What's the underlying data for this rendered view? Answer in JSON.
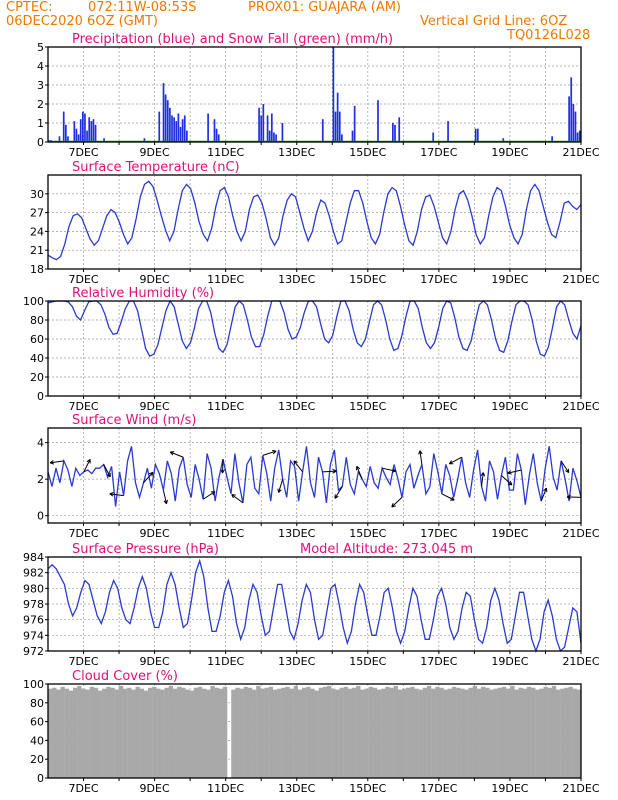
{
  "header": {
    "source": "CPTEC:",
    "coords": "072:11W-08:53S",
    "location": "PROX01: GUAJARA (AM)",
    "run": "06DEC2020 6OZ (GMT)",
    "grid_note": "Vertical Grid Line: 6OZ",
    "code": "TQ0126L028"
  },
  "date_labels": [
    "7DEC",
    "9DEC",
    "11DEC",
    "13DEC",
    "15DEC",
    "17DEC",
    "19DEC",
    "21DEC"
  ],
  "colors": {
    "header": "#f07800",
    "title": "#e0107a",
    "line": "#2a3ad0",
    "bar": "#1f2fe0",
    "snow": "#1a9a1a",
    "cloud": "#a8a8a8"
  },
  "chart_data": [
    {
      "type": "bar",
      "title": "Precipitation (blue) and Snow Fall (green) (mm/h)",
      "ylim": [
        0,
        5
      ],
      "yticks": [
        "0",
        "1",
        "2",
        "3",
        "4",
        "5"
      ],
      "series": [
        {
          "name": "Precipitation",
          "values": [
            0.1,
            0.1,
            0,
            0,
            0,
            0.3,
            0,
            1.6,
            0.9,
            0.3,
            0,
            0,
            1.1,
            0.7,
            0.4,
            1.2,
            1.6,
            1.5,
            0.6,
            1.3,
            1.1,
            1.2,
            0.9,
            0,
            0,
            0,
            0.2,
            0,
            0,
            0,
            0,
            0,
            0,
            0,
            0,
            0,
            0,
            0,
            0,
            0,
            0,
            0,
            0,
            0,
            0,
            0.2,
            0,
            0,
            0,
            0,
            0,
            0,
            1.6,
            0,
            3.1,
            2.5,
            2.2,
            1.8,
            1.4,
            1.3,
            1.1,
            1.5,
            0.8,
            1.2,
            1.4,
            0.6,
            0,
            0,
            0,
            0,
            0,
            0,
            0,
            0,
            0,
            1.5,
            0,
            0,
            1.2,
            0.7,
            0.4,
            0,
            0,
            0,
            0,
            0,
            0,
            0,
            0,
            0,
            0,
            0,
            0,
            0,
            0,
            0,
            0,
            0,
            0,
            1.8,
            1.4,
            2.0,
            0,
            1.4,
            0.6,
            1.5,
            0.5,
            0.4,
            0,
            0,
            1.0,
            0,
            0,
            0,
            0,
            0,
            0,
            0,
            0,
            0,
            0,
            0,
            0,
            0,
            0,
            0,
            0,
            0,
            0,
            1.2,
            0,
            0,
            0,
            0,
            5.0,
            1.6,
            2.6,
            1.6,
            0.4,
            0,
            0,
            0,
            0,
            0.6,
            1.9,
            0,
            0,
            0,
            0,
            0,
            0,
            0,
            0,
            0,
            0,
            2.2,
            0,
            0,
            0,
            0,
            0,
            0,
            1.0,
            0.9,
            0,
            1.3,
            0,
            0,
            0,
            0,
            0,
            0,
            0,
            0,
            0,
            0,
            0,
            0,
            0,
            0,
            0,
            0.5,
            0,
            0,
            0,
            0,
            0,
            0,
            1.1,
            0,
            0,
            0,
            0,
            0,
            0,
            0,
            0,
            0,
            0,
            0,
            0,
            0.7,
            0.7,
            0,
            0,
            0,
            0,
            0,
            0,
            0,
            0,
            0,
            0,
            0,
            0.2,
            0,
            0,
            0,
            0,
            0,
            0,
            0,
            0,
            0,
            0,
            0,
            0,
            0,
            0,
            0,
            0,
            0,
            0,
            0,
            0,
            0,
            0,
            0.3,
            0,
            0,
            0,
            0,
            0,
            0,
            0,
            2.4,
            3.4,
            2.0,
            1.6,
            0.5,
            0.6
          ]
        },
        {
          "name": "Snow Fall",
          "values": [
            0
          ]
        }
      ]
    },
    {
      "type": "line",
      "title": "Surface Temperature (nC)",
      "ylim": [
        18,
        33
      ],
      "yticks": [
        "18",
        "21",
        "24",
        "27",
        "30"
      ],
      "x_start": "2020-12-06T06:00Z",
      "x_step_hours": 3,
      "values": [
        20.2,
        19.8,
        19.5,
        20.0,
        22.0,
        24.8,
        26.5,
        26.8,
        26.2,
        24.5,
        22.8,
        21.8,
        22.5,
        24.5,
        26.5,
        27.5,
        27.0,
        25.5,
        23.5,
        22.0,
        23.0,
        26.0,
        29.5,
        31.5,
        32.0,
        31.2,
        29.0,
        26.5,
        24.2,
        22.5,
        24.0,
        27.5,
        30.5,
        31.5,
        30.8,
        28.5,
        25.5,
        23.5,
        22.5,
        24.5,
        28.0,
        30.5,
        31.0,
        29.5,
        26.5,
        24.0,
        22.5,
        24.0,
        27.5,
        29.5,
        29.8,
        28.5,
        26.0,
        23.0,
        21.8,
        23.0,
        26.5,
        29.0,
        30.0,
        29.5,
        27.0,
        24.5,
        22.5,
        24.0,
        27.0,
        29.0,
        28.5,
        26.5,
        24.0,
        22.0,
        22.5,
        25.5,
        28.5,
        30.5,
        30.5,
        28.5,
        25.5,
        23.0,
        22.0,
        23.5,
        27.0,
        30.0,
        31.0,
        30.5,
        28.0,
        25.0,
        22.5,
        21.8,
        24.0,
        27.5,
        29.5,
        29.8,
        28.0,
        25.5,
        23.0,
        22.0,
        24.0,
        27.5,
        30.0,
        30.5,
        29.0,
        26.5,
        23.5,
        22.0,
        23.0,
        26.5,
        29.5,
        31.0,
        30.5,
        28.0,
        25.0,
        23.0,
        22.0,
        23.5,
        27.5,
        30.5,
        31.5,
        30.5,
        28.0,
        25.5,
        23.5,
        23.0,
        25.5,
        28.5,
        28.8,
        28.0,
        27.5,
        28.3
      ]
    },
    {
      "type": "line",
      "title": "Relative Humidity (%)",
      "ylim": [
        0,
        100
      ],
      "yticks": [
        "0",
        "20",
        "40",
        "60",
        "80",
        "100"
      ],
      "values": [
        98,
        99,
        100,
        100,
        100,
        99,
        94,
        84,
        80,
        90,
        99,
        100,
        100,
        96,
        86,
        72,
        65,
        66,
        78,
        92,
        100,
        100,
        90,
        70,
        50,
        42,
        44,
        54,
        72,
        90,
        100,
        94,
        76,
        58,
        50,
        56,
        72,
        92,
        100,
        100,
        88,
        66,
        50,
        46,
        54,
        74,
        94,
        100,
        96,
        80,
        62,
        52,
        52,
        64,
        84,
        100,
        100,
        100,
        88,
        70,
        60,
        62,
        72,
        88,
        100,
        100,
        94,
        76,
        60,
        56,
        64,
        84,
        100,
        100,
        90,
        70,
        56,
        52,
        60,
        78,
        96,
        100,
        96,
        80,
        60,
        48,
        50,
        64,
        84,
        100,
        100,
        92,
        72,
        56,
        50,
        56,
        72,
        92,
        100,
        98,
        82,
        62,
        50,
        48,
        58,
        78,
        96,
        100,
        96,
        80,
        60,
        48,
        46,
        58,
        78,
        96,
        100,
        100,
        96,
        80,
        58,
        44,
        42,
        52,
        72,
        94,
        100,
        96,
        80,
        66,
        60,
        74
      ]
    },
    {
      "type": "line",
      "title": "Surface Wind (m/s)",
      "ylim": [
        -0.4,
        4.8
      ],
      "yticks": [
        "0",
        "2",
        "4"
      ],
      "values": [
        2.4,
        1.6,
        2.6,
        1.8,
        3.0,
        2.5,
        1.6,
        2.6,
        2.2,
        2.4,
        2.5,
        2.3,
        2.6,
        2.6,
        2.8,
        2.1,
        2.7,
        0.5,
        2.4,
        1.1,
        3.0,
        3.8,
        1.8,
        1.0,
        1.8,
        2.6,
        1.5,
        2.8,
        2.3,
        1.4,
        3.0,
        2.3,
        0.8,
        2.6,
        3.2,
        1.7,
        1.0,
        2.8,
        2.0,
        0.9,
        3.4,
        2.6,
        0.8,
        2.1,
        3.1,
        2.1,
        1.2,
        3.4,
        1.8,
        0.7,
        2.8,
        3.2,
        1.5,
        1.2,
        3.3,
        2.3,
        0.8,
        2.6,
        3.6,
        2.0,
        1.0,
        3.0,
        2.7,
        0.8,
        2.4,
        3.8,
        1.8,
        1.0,
        3.2,
        2.4,
        0.7,
        2.8,
        3.6,
        1.4,
        1.6,
        3.2,
        1.7,
        1.2,
        2.4,
        2.0,
        1.6,
        2.7,
        1.8,
        1.5,
        2.6,
        2.1,
        1.7,
        2.8,
        2.0,
        1.0,
        2.4,
        2.8,
        1.5,
        2.2,
        2.8,
        1.2,
        1.6,
        3.4,
        2.4,
        1.2,
        2.8,
        2.2,
        1.0,
        2.0,
        3.2,
        1.8,
        1.0,
        2.5,
        3.6,
        1.6,
        0.8,
        3.0,
        2.4,
        0.9,
        2.2,
        3.2,
        1.4,
        1.4,
        3.4,
        2.5,
        0.6,
        2.2,
        3.4,
        1.8,
        0.8,
        2.6,
        3.8,
        2.1,
        1.4,
        3.0,
        2.0,
        0.8,
        2.6,
        1.9,
        1.0
      ]
    },
    {
      "type": "line",
      "title": "Surface Pressure (hPa)",
      "annotation": "Model Altitude: 273.045 m",
      "ylim": [
        972,
        984
      ],
      "yticks": [
        "972",
        "974",
        "976",
        "978",
        "980",
        "982",
        "984"
      ],
      "values": [
        982.5,
        983.0,
        982.5,
        981.5,
        980.5,
        978.0,
        976.5,
        977.5,
        979.5,
        981.0,
        980.5,
        978.5,
        976.5,
        975.5,
        977.0,
        979.5,
        981.0,
        980.0,
        977.5,
        976.0,
        975.5,
        977.5,
        980.0,
        981.5,
        980.0,
        977.0,
        975.0,
        975.0,
        977.0,
        980.5,
        982.0,
        980.5,
        977.5,
        975.0,
        975.5,
        978.5,
        982.0,
        983.5,
        981.5,
        977.5,
        974.5,
        974.5,
        976.5,
        979.5,
        981.0,
        979.0,
        975.5,
        973.5,
        975.0,
        978.5,
        980.5,
        979.5,
        976.5,
        974.0,
        974.5,
        977.5,
        980.5,
        980.5,
        977.5,
        974.5,
        973.5,
        975.5,
        978.5,
        980.5,
        979.5,
        976.0,
        973.5,
        974.0,
        977.0,
        980.0,
        980.5,
        978.0,
        975.0,
        973.0,
        974.5,
        978.0,
        980.5,
        979.5,
        976.5,
        974.0,
        974.0,
        976.5,
        979.5,
        980.0,
        977.5,
        974.5,
        973.0,
        974.5,
        977.5,
        980.0,
        979.0,
        976.0,
        973.5,
        973.5,
        976.0,
        979.0,
        980.0,
        978.0,
        975.0,
        973.5,
        974.5,
        977.5,
        979.5,
        979.0,
        976.0,
        973.5,
        973.0,
        975.0,
        978.5,
        980.0,
        978.5,
        975.5,
        973.0,
        973.5,
        976.5,
        979.5,
        979.5,
        976.5,
        973.5,
        972.0,
        973.5,
        977.0,
        978.5,
        976.5,
        973.5,
        972.0,
        972.5,
        975.0,
        977.5,
        977.0,
        973.0
      ]
    },
    {
      "type": "bar",
      "title": "Cloud Cover (%)",
      "ylim": [
        0,
        100
      ],
      "yticks": [
        "0",
        "20",
        "40",
        "60",
        "80",
        "100"
      ],
      "values": [
        95,
        96,
        94,
        97,
        95,
        93,
        96,
        98,
        95,
        94,
        97,
        96,
        93,
        95,
        97,
        96,
        94,
        98,
        95,
        96,
        94,
        97,
        95,
        93,
        96,
        97,
        95,
        94,
        96,
        98,
        95,
        97,
        96,
        94,
        93,
        96,
        97,
        95,
        94,
        98,
        96,
        95,
        97,
        0,
        94,
        96,
        95,
        97,
        96,
        94,
        98,
        95,
        96,
        97,
        94,
        95,
        96,
        97,
        95,
        98,
        94,
        96,
        97,
        95,
        93,
        96,
        97,
        98,
        95,
        94,
        96,
        97,
        95,
        96,
        98,
        94,
        95,
        97,
        96,
        94,
        95,
        97,
        96,
        98,
        94,
        95,
        96,
        97,
        95,
        94,
        96,
        98,
        95,
        97,
        96,
        94,
        95,
        97,
        96,
        95,
        94,
        96,
        98,
        95,
        97,
        96,
        94,
        95,
        96,
        97,
        95,
        98,
        94,
        96,
        95,
        97,
        96,
        94,
        95,
        97,
        96,
        98,
        94,
        95,
        96,
        97,
        95,
        94
      ]
    }
  ]
}
